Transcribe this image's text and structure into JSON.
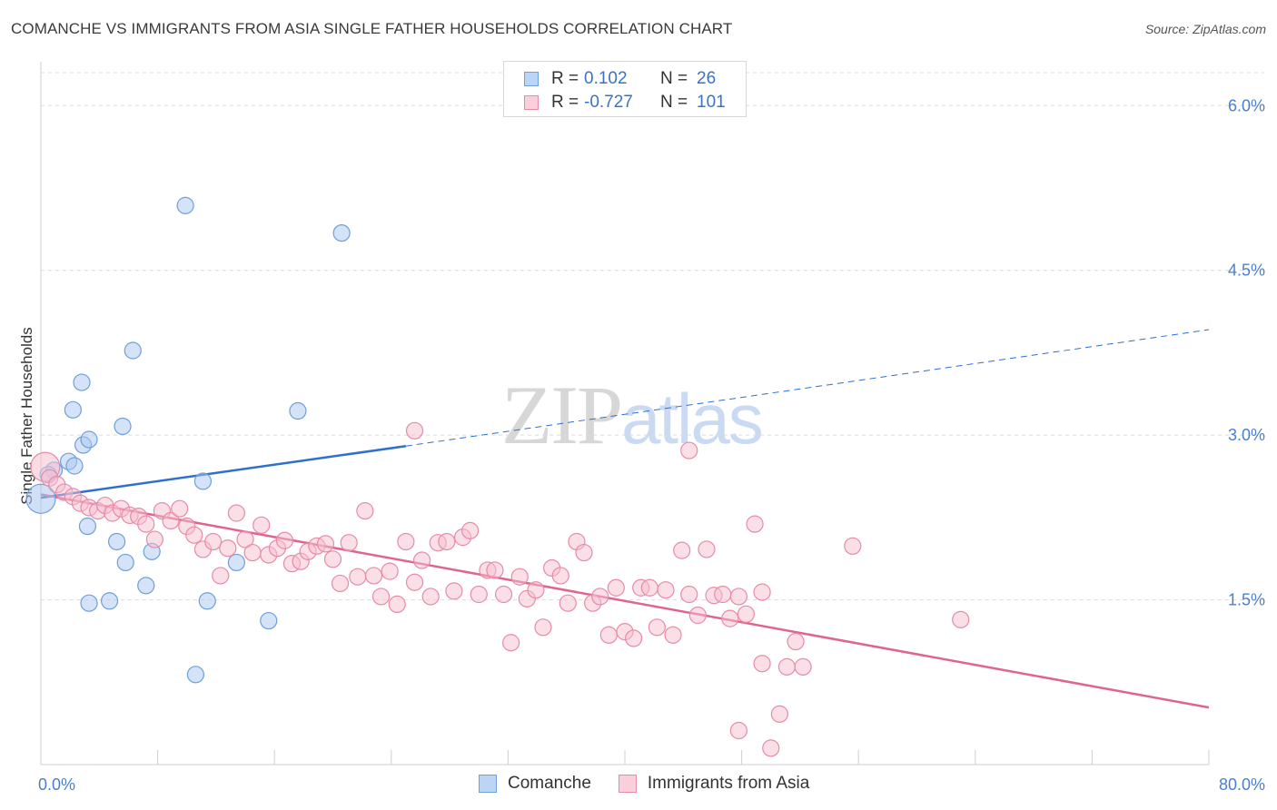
{
  "title": "COMANCHE VS IMMIGRANTS FROM ASIA SINGLE FATHER HOUSEHOLDS CORRELATION CHART",
  "source": "Source: ZipAtlas.com",
  "watermark": {
    "zip": "ZIP",
    "atlas": "atlas"
  },
  "legend": {
    "rows": [
      {
        "r_label": "R =",
        "r_value": "0.102",
        "n_label": "N =",
        "n_value": "26"
      },
      {
        "r_label": "R =",
        "r_value": "-0.727",
        "n_label": "N =",
        "n_value": "101"
      }
    ]
  },
  "chart_data": {
    "type": "scatter",
    "ylabel": "Single Father Households",
    "xlim": [
      0,
      80
    ],
    "ylim": [
      0,
      6.3
    ],
    "y_ticks": [
      {
        "value": 1.5,
        "label": "1.5%"
      },
      {
        "value": 3.0,
        "label": "3.0%"
      },
      {
        "value": 4.5,
        "label": "4.5%"
      },
      {
        "value": 6.0,
        "label": "6.0%"
      }
    ],
    "x_tick_labels": [
      {
        "value": 0,
        "label": "0.0%"
      },
      {
        "value": 80,
        "label": "80.0%"
      }
    ],
    "grid": true,
    "legend_position": "bottom-center",
    "series": [
      {
        "name": "Comanche",
        "color": "#a9c8f0",
        "edge": "#6f9fdc",
        "trend": {
          "x0": 0,
          "y0": 2.43,
          "x1": 25,
          "y1": 2.9,
          "extend_to_x": 80,
          "extend_y": 3.96,
          "color": "#2f6fcf"
        },
        "points": [
          [
            0.0,
            2.42
          ],
          [
            0.9,
            2.68
          ],
          [
            2.2,
            3.23
          ],
          [
            1.9,
            2.76
          ],
          [
            2.3,
            2.72
          ],
          [
            2.9,
            2.91
          ],
          [
            3.3,
            2.96
          ],
          [
            2.8,
            3.48
          ],
          [
            5.6,
            3.08
          ],
          [
            6.3,
            3.77
          ],
          [
            9.9,
            5.09
          ],
          [
            20.6,
            4.84
          ],
          [
            17.6,
            3.22
          ],
          [
            11.1,
            2.58
          ],
          [
            3.2,
            2.17
          ],
          [
            5.2,
            2.03
          ],
          [
            7.6,
            1.94
          ],
          [
            5.8,
            1.84
          ],
          [
            7.2,
            1.63
          ],
          [
            3.3,
            1.47
          ],
          [
            4.7,
            1.49
          ],
          [
            11.4,
            1.49
          ],
          [
            13.4,
            1.84
          ],
          [
            15.6,
            1.31
          ],
          [
            10.6,
            0.82
          ],
          [
            0.5,
            2.64
          ]
        ]
      },
      {
        "name": "Immigrants from Asia",
        "color": "#f6bfd0",
        "edge": "#e88aa8",
        "trend": {
          "x0": 0,
          "y0": 2.46,
          "x1": 80,
          "y1": 0.52,
          "color": "#e0648f"
        },
        "points": [
          [
            0.3,
            2.71
          ],
          [
            0.6,
            2.61
          ],
          [
            1.1,
            2.55
          ],
          [
            1.6,
            2.48
          ],
          [
            2.2,
            2.44
          ],
          [
            2.7,
            2.38
          ],
          [
            3.3,
            2.34
          ],
          [
            3.9,
            2.31
          ],
          [
            4.4,
            2.36
          ],
          [
            4.9,
            2.29
          ],
          [
            5.5,
            2.33
          ],
          [
            6.1,
            2.27
          ],
          [
            6.7,
            2.26
          ],
          [
            7.2,
            2.19
          ],
          [
            7.8,
            2.05
          ],
          [
            8.3,
            2.31
          ],
          [
            8.9,
            2.22
          ],
          [
            9.5,
            2.33
          ],
          [
            10.0,
            2.17
          ],
          [
            10.5,
            2.09
          ],
          [
            11.1,
            1.96
          ],
          [
            11.8,
            2.03
          ],
          [
            12.3,
            1.72
          ],
          [
            12.8,
            1.97
          ],
          [
            13.4,
            2.29
          ],
          [
            14.0,
            2.05
          ],
          [
            14.5,
            1.93
          ],
          [
            15.1,
            2.18
          ],
          [
            15.6,
            1.91
          ],
          [
            16.2,
            1.97
          ],
          [
            16.7,
            2.04
          ],
          [
            17.2,
            1.83
          ],
          [
            17.8,
            1.85
          ],
          [
            18.3,
            1.94
          ],
          [
            18.9,
            1.99
          ],
          [
            19.5,
            2.01
          ],
          [
            20.0,
            1.87
          ],
          [
            20.5,
            1.65
          ],
          [
            21.1,
            2.02
          ],
          [
            21.7,
            1.71
          ],
          [
            22.2,
            2.31
          ],
          [
            22.8,
            1.72
          ],
          [
            23.3,
            1.53
          ],
          [
            23.9,
            1.76
          ],
          [
            24.4,
            1.46
          ],
          [
            25.0,
            2.03
          ],
          [
            25.6,
            1.66
          ],
          [
            26.1,
            1.86
          ],
          [
            26.7,
            1.53
          ],
          [
            27.2,
            2.02
          ],
          [
            27.8,
            2.03
          ],
          [
            28.3,
            1.58
          ],
          [
            28.9,
            2.07
          ],
          [
            29.4,
            2.13
          ],
          [
            30.0,
            1.55
          ],
          [
            30.6,
            1.77
          ],
          [
            31.1,
            1.77
          ],
          [
            31.7,
            1.55
          ],
          [
            32.2,
            1.11
          ],
          [
            32.8,
            1.71
          ],
          [
            33.3,
            1.51
          ],
          [
            33.9,
            1.59
          ],
          [
            34.4,
            1.25
          ],
          [
            35.0,
            1.79
          ],
          [
            35.6,
            1.72
          ],
          [
            36.1,
            1.47
          ],
          [
            36.7,
            2.03
          ],
          [
            37.2,
            1.93
          ],
          [
            37.8,
            1.47
          ],
          [
            38.3,
            1.53
          ],
          [
            38.9,
            1.18
          ],
          [
            39.4,
            1.61
          ],
          [
            40.0,
            1.21
          ],
          [
            40.6,
            1.15
          ],
          [
            41.1,
            1.61
          ],
          [
            41.7,
            1.61
          ],
          [
            42.2,
            1.25
          ],
          [
            42.8,
            1.59
          ],
          [
            43.3,
            1.18
          ],
          [
            43.9,
            1.95
          ],
          [
            44.4,
            1.55
          ],
          [
            45.0,
            1.36
          ],
          [
            45.6,
            1.96
          ],
          [
            46.1,
            1.54
          ],
          [
            46.7,
            1.55
          ],
          [
            47.2,
            1.33
          ],
          [
            47.8,
            1.53
          ],
          [
            48.3,
            1.37
          ],
          [
            48.9,
            2.19
          ],
          [
            49.4,
            1.57
          ],
          [
            50.0,
            0.15
          ],
          [
            50.6,
            0.46
          ],
          [
            51.1,
            0.89
          ],
          [
            51.7,
            1.12
          ],
          [
            52.2,
            0.89
          ],
          [
            49.4,
            0.92
          ],
          [
            47.8,
            0.31
          ],
          [
            44.4,
            2.86
          ],
          [
            25.6,
            3.04
          ],
          [
            63.0,
            1.32
          ],
          [
            55.6,
            1.99
          ]
        ]
      }
    ]
  }
}
